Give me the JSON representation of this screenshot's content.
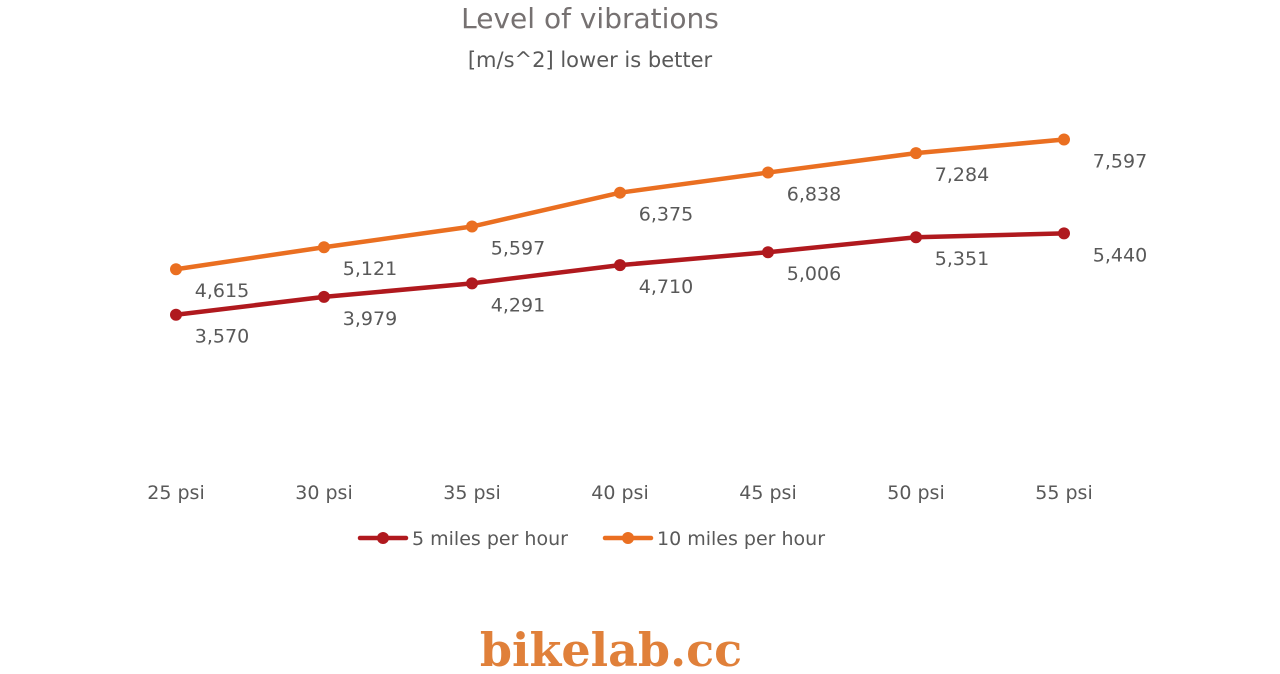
{
  "brand": {
    "text": "bikelab.cc",
    "color": "#e0803a"
  },
  "chart_data": {
    "type": "line",
    "title": "Level of vibrations",
    "subtitle": "[m/s^2] lower is better",
    "categories": [
      "25 psi",
      "30 psi",
      "35 psi",
      "40 psi",
      "45 psi",
      "50 psi",
      "55 psi"
    ],
    "series": [
      {
        "name": "5 miles per hour",
        "color": "#b0191e",
        "values": [
          3.57,
          3.979,
          4.291,
          4.71,
          5.006,
          5.351,
          5.44
        ],
        "labels": [
          "3,570",
          "3,979",
          "4,291",
          "4,710",
          "5,006",
          "5,351",
          "5,440"
        ]
      },
      {
        "name": "10 miles per hour",
        "color": "#ea6f21",
        "values": [
          4.615,
          5.121,
          5.597,
          6.375,
          6.838,
          7.284,
          7.597
        ],
        "labels": [
          "4,615",
          "5,121",
          "5,597",
          "6,375",
          "6,838",
          "7,284",
          "7,597"
        ]
      }
    ],
    "ylim": [
      0,
      10.3
    ],
    "grid": false,
    "legend": "bottom"
  }
}
